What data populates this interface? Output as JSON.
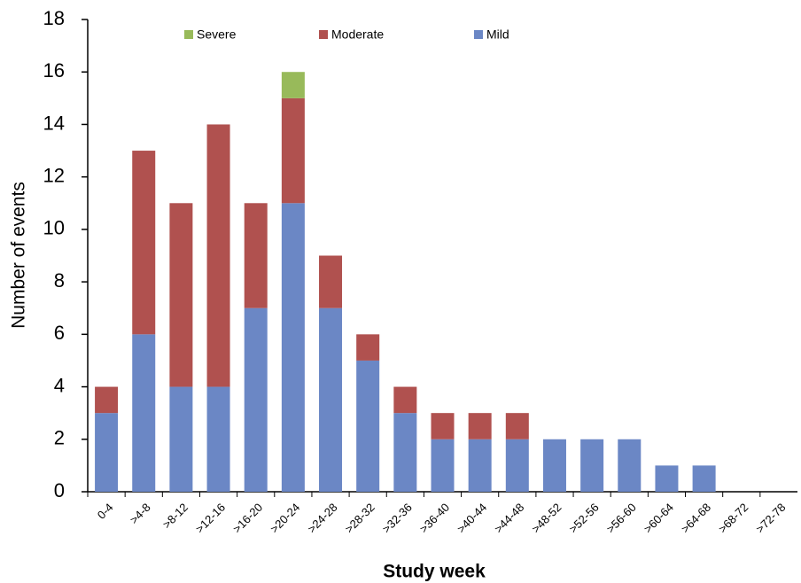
{
  "chart_data": {
    "type": "stacked_bar",
    "x_label": "Study week",
    "y_label": "Number of events",
    "categories": [
      "0-4",
      ">4-8",
      ">8-12",
      ">12-16",
      ">16-20",
      ">20-24",
      ">24-28",
      ">28-32",
      ">32-36",
      ">36-40",
      ">40-44",
      ">44-48",
      ">48-52",
      ">52-56",
      ">56-60",
      ">60-64",
      ">64-68",
      ">68-72",
      ">72-78"
    ],
    "series": [
      {
        "name": "Mild",
        "color": "#6b87c5",
        "values": [
          3,
          6,
          4,
          4,
          7,
          11,
          7,
          5,
          3,
          2,
          2,
          2,
          2,
          2,
          2,
          1,
          1,
          0,
          0
        ]
      },
      {
        "name": "Moderate",
        "color": "#b0514f",
        "values": [
          1,
          7,
          7,
          10,
          4,
          4,
          2,
          1,
          1,
          1,
          1,
          1,
          0,
          0,
          0,
          0,
          0,
          0,
          0
        ]
      },
      {
        "name": "Severe",
        "color": "#98ba5a",
        "values": [
          0,
          0,
          0,
          0,
          0,
          1,
          0,
          0,
          0,
          0,
          0,
          0,
          0,
          0,
          0,
          0,
          0,
          0,
          0
        ]
      }
    ],
    "ylim": [
      0,
      18
    ],
    "yticks": [
      0,
      2,
      4,
      6,
      8,
      10,
      12,
      14,
      16,
      18
    ],
    "grid": false
  }
}
